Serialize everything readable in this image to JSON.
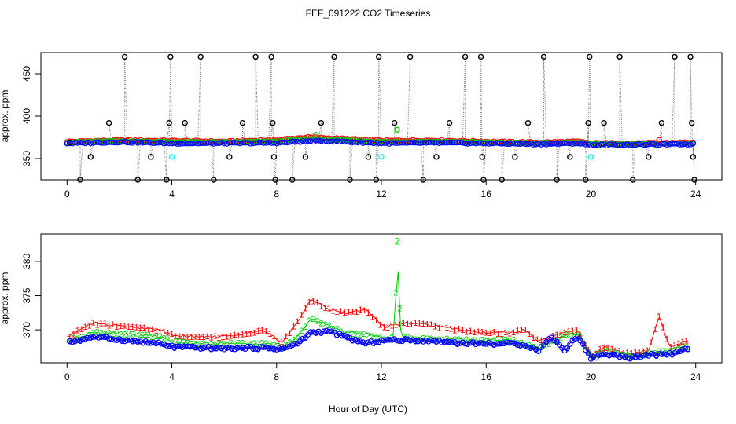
{
  "title": "FEF_091222  CO2 Timeseries",
  "xlabel": "Hour of Day (UTC)",
  "chart_data": [
    {
      "type": "scatter",
      "panel": "top",
      "ylabel": "approx. ppm",
      "xlim": [
        -1,
        25
      ],
      "ylim": [
        325,
        475
      ],
      "xticks": [
        0,
        4,
        8,
        12,
        16,
        20,
        24
      ],
      "yticks": [
        350,
        400,
        450
      ],
      "grid": false,
      "colors": {
        "s1": "#ff0000",
        "s2": "#00cc00",
        "s3": "#0000ff",
        "cal": "#000000",
        "cal2": "#00ffff"
      },
      "base_series": [
        {
          "name": "1",
          "color": "#ff0000",
          "values": [
            [
              0.1,
              370
            ],
            [
              2,
              371.5
            ],
            [
              4,
              371
            ],
            [
              6,
              370
            ],
            [
              8,
              372
            ],
            [
              9.2,
              375
            ],
            [
              10,
              374
            ],
            [
              12.2,
              371
            ],
            [
              14,
              371.5
            ],
            [
              16,
              370
            ],
            [
              18,
              369
            ],
            [
              19.5,
              370
            ],
            [
              20,
              368
            ],
            [
              22,
              368
            ],
            [
              23.7,
              369
            ]
          ]
        },
        {
          "name": "2",
          "color": "#00cc00",
          "values": [
            [
              0.1,
              369
            ],
            [
              2,
              370.5
            ],
            [
              4,
              369.5
            ],
            [
              6,
              369
            ],
            [
              8,
              370
            ],
            [
              9.2,
              373
            ],
            [
              10,
              372
            ],
            [
              12.2,
              369.5
            ],
            [
              14,
              370
            ],
            [
              16,
              369
            ],
            [
              18,
              368
            ],
            [
              19.5,
              369
            ],
            [
              20,
              367.5
            ],
            [
              22,
              367
            ],
            [
              23.7,
              368
            ]
          ]
        },
        {
          "name": "3",
          "color": "#0000ff",
          "values": [
            [
              0.1,
              368
            ],
            [
              2,
              369.5
            ],
            [
              4,
              368
            ],
            [
              6,
              368
            ],
            [
              8,
              368.5
            ],
            [
              9.2,
              370.5
            ],
            [
              10,
              370.5
            ],
            [
              12.2,
              368
            ],
            [
              14,
              368.5
            ],
            [
              16,
              368
            ],
            [
              18,
              367
            ],
            [
              19.5,
              368
            ],
            [
              20,
              366
            ],
            [
              22,
              366.5
            ],
            [
              23.7,
              367
            ]
          ]
        }
      ],
      "cal_points": [
        [
          0.1,
          369
        ],
        [
          0.5,
          325
        ],
        [
          0.9,
          352
        ],
        [
          1.6,
          392
        ],
        [
          2.2,
          470
        ],
        [
          2.7,
          325
        ],
        [
          3.2,
          352
        ],
        [
          3.8,
          325
        ],
        [
          3.9,
          392
        ],
        [
          3.95,
          470
        ],
        [
          4.5,
          392
        ],
        [
          5.1,
          470
        ],
        [
          5.6,
          325
        ],
        [
          6.2,
          352
        ],
        [
          6.7,
          392
        ],
        [
          7.2,
          470
        ],
        [
          7.8,
          470
        ],
        [
          7.85,
          392
        ],
        [
          7.9,
          352
        ],
        [
          7.95,
          325
        ],
        [
          8.6,
          325
        ],
        [
          9.1,
          352
        ],
        [
          9.7,
          392
        ],
        [
          10.2,
          470
        ],
        [
          10.8,
          325
        ],
        [
          11.5,
          352
        ],
        [
          11.8,
          325
        ],
        [
          11.9,
          470
        ],
        [
          12.5,
          392
        ],
        [
          13.1,
          470
        ],
        [
          13.6,
          325
        ],
        [
          14.1,
          352
        ],
        [
          14.6,
          392
        ],
        [
          15.2,
          470
        ],
        [
          15.8,
          470
        ],
        [
          15.85,
          352
        ],
        [
          15.9,
          325
        ],
        [
          16.6,
          325
        ],
        [
          17.1,
          352
        ],
        [
          17.6,
          392
        ],
        [
          18.2,
          470
        ],
        [
          18.7,
          325
        ],
        [
          19.2,
          352
        ],
        [
          19.8,
          325
        ],
        [
          19.9,
          392
        ],
        [
          19.95,
          470
        ],
        [
          20.5,
          392
        ],
        [
          21.1,
          470
        ],
        [
          21.6,
          325
        ],
        [
          22.2,
          352
        ],
        [
          22.7,
          392
        ],
        [
          23.2,
          470
        ],
        [
          23.8,
          470
        ],
        [
          23.85,
          392
        ],
        [
          23.9,
          352
        ],
        [
          23.95,
          325
        ]
      ],
      "cal2_points": [
        [
          4.0,
          352
        ],
        [
          12.0,
          352
        ],
        [
          20.0,
          352
        ]
      ],
      "green_points": [
        [
          9.5,
          378
        ],
        [
          12.6,
          384
        ]
      ],
      "extra_red": [
        [
          22.6,
          372
        ]
      ]
    },
    {
      "type": "line",
      "panel": "bottom",
      "ylabel": "approx. ppm",
      "xlim": [
        -1,
        25
      ],
      "ylim": [
        365.2,
        384
      ],
      "xticks": [
        0,
        4,
        8,
        12,
        16,
        20,
        24
      ],
      "yticks": [
        370,
        375,
        380
      ],
      "grid": false,
      "series": [
        {
          "name": "1",
          "color": "#ff0000",
          "values": [
            [
              0.1,
              369.2
            ],
            [
              1,
              371
            ],
            [
              2.2,
              370.5
            ],
            [
              3.5,
              370
            ],
            [
              4.1,
              369.2
            ],
            [
              5,
              369
            ],
            [
              6,
              369
            ],
            [
              7.5,
              370
            ],
            [
              8.2,
              368.2
            ],
            [
              8.8,
              371.2
            ],
            [
              9.3,
              374.5
            ],
            [
              10,
              373
            ],
            [
              10.6,
              372.5
            ],
            [
              11.4,
              373
            ],
            [
              12.1,
              370.4
            ],
            [
              13,
              371
            ],
            [
              14,
              370.6
            ],
            [
              15,
              370
            ],
            [
              16,
              369.6
            ],
            [
              17,
              369.6
            ],
            [
              17.5,
              370
            ],
            [
              18,
              368.3
            ],
            [
              19,
              369.6
            ],
            [
              19.5,
              370
            ],
            [
              20,
              366.2
            ],
            [
              20.5,
              367.5
            ],
            [
              21.5,
              366.5
            ],
            [
              22.2,
              367
            ],
            [
              22.6,
              372
            ],
            [
              23,
              367.5
            ],
            [
              23.7,
              368.5
            ]
          ]
        },
        {
          "name": "2",
          "color": "#00cc00",
          "values": [
            [
              0.1,
              368.5
            ],
            [
              1,
              369.6
            ],
            [
              2.2,
              369.5
            ],
            [
              3.5,
              369
            ],
            [
              4.1,
              368.2
            ],
            [
              5,
              368
            ],
            [
              6,
              368
            ],
            [
              7.5,
              368
            ],
            [
              8.2,
              367.5
            ],
            [
              8.8,
              369
            ],
            [
              9.3,
              371.6
            ],
            [
              10,
              370.6
            ],
            [
              10.6,
              369.5
            ],
            [
              11.4,
              369.5
            ],
            [
              12.1,
              368.7
            ],
            [
              12.5,
              368.9
            ],
            [
              12.6,
              382
            ],
            [
              12.75,
              368.9
            ],
            [
              14,
              368.6
            ],
            [
              15,
              368.6
            ],
            [
              16,
              368.5
            ],
            [
              17,
              368.5
            ],
            [
              18,
              367.3
            ],
            [
              19,
              369.2
            ],
            [
              19.5,
              369.5
            ],
            [
              20,
              366.1
            ],
            [
              20.5,
              367
            ],
            [
              21.5,
              366.2
            ],
            [
              22.2,
              366.5
            ],
            [
              23,
              367
            ],
            [
              23.7,
              367.8
            ]
          ]
        },
        {
          "name": "3",
          "color": "#0000ff",
          "values": [
            [
              0.1,
              368.2
            ],
            [
              1,
              369
            ],
            [
              2.2,
              368.5
            ],
            [
              3.5,
              368
            ],
            [
              4.1,
              367.5
            ],
            [
              5,
              367.4
            ],
            [
              6,
              367.3
            ],
            [
              7.5,
              367.4
            ],
            [
              8.2,
              367.2
            ],
            [
              8.8,
              368
            ],
            [
              9.3,
              369.6
            ],
            [
              10,
              369.8
            ],
            [
              10.6,
              369
            ],
            [
              11.4,
              368
            ],
            [
              12.1,
              368.5
            ],
            [
              13,
              368.5
            ],
            [
              14,
              368.4
            ],
            [
              15,
              368.1
            ],
            [
              16,
              368
            ],
            [
              17,
              368
            ],
            [
              17.5,
              367.8
            ],
            [
              18,
              367
            ],
            [
              18.5,
              369
            ],
            [
              19,
              367
            ],
            [
              19.5,
              369.2
            ],
            [
              20,
              365.8
            ],
            [
              20.5,
              366.5
            ],
            [
              21.5,
              366
            ],
            [
              22.2,
              366.3
            ],
            [
              23,
              366.5
            ],
            [
              23.7,
              367.2
            ]
          ]
        }
      ]
    }
  ]
}
